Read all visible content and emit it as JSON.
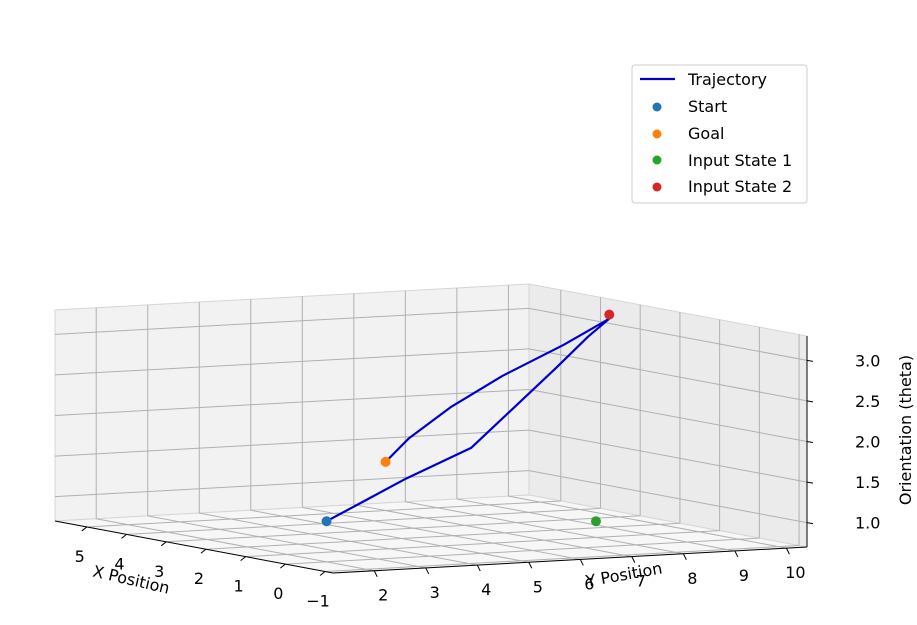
{
  "chart_data": {
    "type": "line3d",
    "title": "",
    "xlabel": "X Position",
    "ylabel": "Y Position",
    "zlabel": "Orientation (theta)",
    "xlim": [
      -1.2,
      5.8
    ],
    "ylim": [
      1.2,
      10.4
    ],
    "zlim": [
      0.7,
      3.3
    ],
    "x_ticks": [
      -1,
      0,
      1,
      2,
      3,
      4,
      5
    ],
    "y_ticks": [
      2,
      3,
      4,
      5,
      6,
      7,
      8,
      9,
      10
    ],
    "z_ticks": [
      1.0,
      1.5,
      2.0,
      2.5,
      3.0
    ],
    "x_tick_labels": [
      "−1",
      "0",
      "1",
      "2",
      "3",
      "4",
      "5"
    ],
    "y_tick_labels": [
      "2",
      "3",
      "4",
      "5",
      "6",
      "7",
      "8",
      "9",
      "10"
    ],
    "z_tick_labels": [
      "1.0",
      "1.5",
      "2.0",
      "2.5",
      "3.0"
    ],
    "grid": true,
    "legend_position": "top-right",
    "series": [
      {
        "name": "Trajectory",
        "kind": "line",
        "color": "#0000cd",
        "points": [
          [
            0.0,
            2.0,
            1.2
          ],
          [
            0.3,
            3.0,
            1.4
          ],
          [
            0.6,
            4.0,
            1.6
          ],
          [
            0.9,
            5.5,
            1.9
          ],
          [
            1.5,
            6.8,
            2.3
          ],
          [
            2.0,
            8.0,
            2.7
          ],
          [
            2.5,
            9.0,
            3.0
          ],
          [
            3.0,
            9.8,
            3.15
          ],
          [
            3.5,
            9.3,
            2.8
          ],
          [
            4.0,
            8.5,
            2.4
          ],
          [
            4.4,
            7.8,
            2.0
          ],
          [
            4.8,
            7.3,
            1.6
          ],
          [
            5.0,
            7.0,
            1.3
          ]
        ]
      },
      {
        "name": "Start",
        "kind": "scatter",
        "color": "#1f77b4",
        "points": [
          [
            0.0,
            2.0,
            1.2
          ]
        ]
      },
      {
        "name": "Goal",
        "kind": "scatter",
        "color": "#ff7f0e",
        "points": [
          [
            5.0,
            7.0,
            1.3
          ]
        ]
      },
      {
        "name": "Input State 1",
        "kind": "scatter",
        "color": "#2ca02c",
        "points": [
          [
            1.0,
            8.0,
            0.9
          ]
        ]
      },
      {
        "name": "Input State 2",
        "kind": "scatter",
        "color": "#d62728",
        "points": [
          [
            3.0,
            9.8,
            3.2
          ]
        ]
      }
    ]
  }
}
